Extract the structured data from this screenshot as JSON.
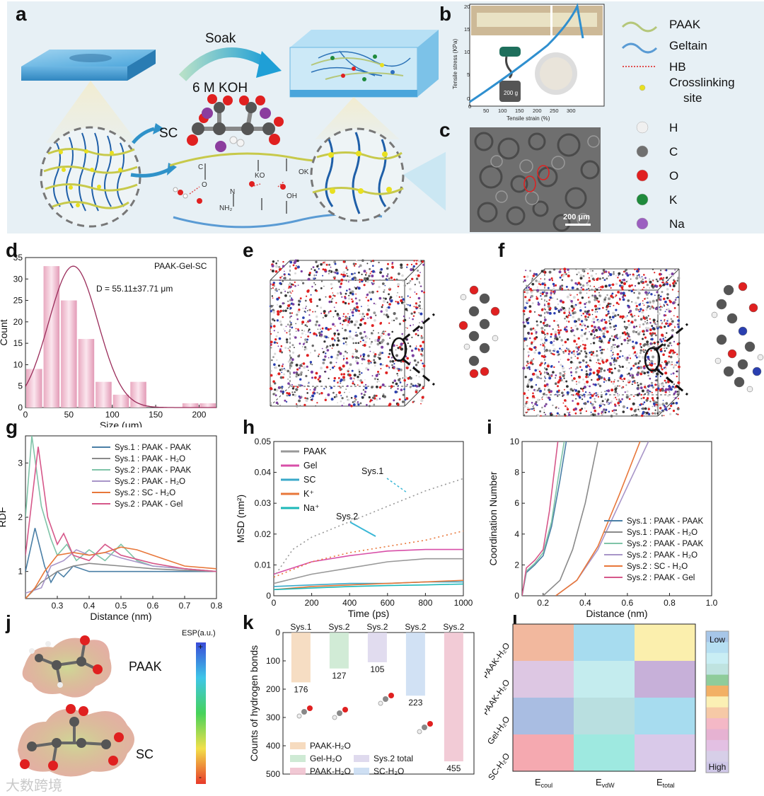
{
  "panel_labels": {
    "a": "a",
    "b": "b",
    "c": "c",
    "d": "d",
    "e": "e",
    "f": "f",
    "g": "g",
    "h": "h",
    "i": "i",
    "j": "j",
    "k": "k",
    "l": "l"
  },
  "panel_a": {
    "soak": "Soak",
    "koh": "6 M KOH",
    "sc": "SC",
    "mol_labels": {
      "ko1": "KO",
      "ko2": "OK",
      "nh2": "NH₂",
      "n1": "H",
      "n2": "N",
      "oh": "OH",
      "o1": "O",
      "c1": "C"
    }
  },
  "legend_a": [
    {
      "label": "PAAK",
      "color": "#b5c77a",
      "kind": "line"
    },
    {
      "label": "Geltain",
      "color": "#5a9bd4",
      "kind": "line"
    },
    {
      "label": "HB",
      "color": "#e05050",
      "kind": "dots"
    },
    {
      "label": "Crosslinking site",
      "color": "#e8e020",
      "kind": "atom"
    },
    {
      "label": "H",
      "color": "#f0f0f0",
      "kind": "atom"
    },
    {
      "label": "C",
      "color": "#707070",
      "kind": "atom"
    },
    {
      "label": "O",
      "color": "#e02020",
      "kind": "atom"
    },
    {
      "label": "K",
      "color": "#1f8a3c",
      "kind": "atom"
    },
    {
      "label": "Na",
      "color": "#9b5fc0",
      "kind": "atom"
    }
  ],
  "panel_b": {
    "ylabel": "Tensile stress (KPa)",
    "xlabel": "Tensile strain (%)",
    "weight": "200 g"
  },
  "panel_c": {
    "scale": "200 μm"
  },
  "panel_e_f": {},
  "chart_data": [
    {
      "id": "d",
      "type": "bar",
      "title": "PAAK-Gel-SC",
      "annotation": "D = 55.11±37.71 μm",
      "xlabel": "Size (μm)",
      "ylabel": "Count",
      "xlim": [
        0,
        220
      ],
      "ylim": [
        0,
        35
      ],
      "xticks": [
        0,
        50,
        100,
        150,
        200
      ],
      "yticks": [
        0,
        5,
        10,
        15,
        20,
        25,
        30,
        35
      ],
      "bins": [
        [
          0,
          20,
          9
        ],
        [
          20,
          40,
          33
        ],
        [
          40,
          60,
          25
        ],
        [
          60,
          80,
          16
        ],
        [
          80,
          100,
          6
        ],
        [
          100,
          120,
          3
        ],
        [
          120,
          140,
          6
        ],
        [
          140,
          160,
          0
        ],
        [
          160,
          180,
          0
        ],
        [
          180,
          200,
          1
        ],
        [
          200,
          220,
          1
        ]
      ],
      "fit_mean": 55.11,
      "fit_peak": 33,
      "fit_sd": 37.71
    },
    {
      "id": "g",
      "type": "line",
      "xlabel": "Distance (nm)",
      "ylabel": "RDF",
      "xlim": [
        0.2,
        0.8
      ],
      "ylim": [
        0.5,
        3.5
      ],
      "xticks": [
        0.3,
        0.4,
        0.5,
        0.6,
        0.7,
        0.8
      ],
      "yticks": [
        1,
        2,
        3
      ],
      "series": [
        {
          "name": "Sys.1 : PAAK - PAAK",
          "color": "#4a7fa6",
          "points": [
            [
              0.2,
              1.0
            ],
            [
              0.23,
              1.8
            ],
            [
              0.26,
              1.1
            ],
            [
              0.28,
              0.8
            ],
            [
              0.3,
              1.0
            ],
            [
              0.32,
              0.9
            ],
            [
              0.35,
              1.1
            ],
            [
              0.4,
              1.0
            ],
            [
              0.5,
              1.0
            ],
            [
              0.6,
              1.0
            ],
            [
              0.8,
              1.0
            ]
          ]
        },
        {
          "name": "Sys.1 : PAAK - H₂O",
          "color": "#8a8a8a",
          "points": [
            [
              0.2,
              0.5
            ],
            [
              0.25,
              0.8
            ],
            [
              0.3,
              1.0
            ],
            [
              0.35,
              1.1
            ],
            [
              0.4,
              1.15
            ],
            [
              0.5,
              1.1
            ],
            [
              0.6,
              1.05
            ],
            [
              0.7,
              1.02
            ],
            [
              0.8,
              1.0
            ]
          ]
        },
        {
          "name": "Sys.2 : PAAK - PAAK",
          "color": "#7fc4a8",
          "points": [
            [
              0.2,
              2.0
            ],
            [
              0.22,
              3.5
            ],
            [
              0.25,
              2.2
            ],
            [
              0.28,
              1.6
            ],
            [
              0.3,
              1.3
            ],
            [
              0.33,
              1.5
            ],
            [
              0.36,
              1.2
            ],
            [
              0.4,
              1.4
            ],
            [
              0.45,
              1.2
            ],
            [
              0.5,
              1.5
            ],
            [
              0.55,
              1.2
            ],
            [
              0.6,
              1.1
            ],
            [
              0.7,
              1.05
            ],
            [
              0.8,
              1.0
            ]
          ]
        },
        {
          "name": "Sys.2 : PAAK - H₂O",
          "color": "#a895c8",
          "points": [
            [
              0.2,
              0.6
            ],
            [
              0.25,
              0.7
            ],
            [
              0.28,
              1.1
            ],
            [
              0.32,
              1.2
            ],
            [
              0.36,
              1.4
            ],
            [
              0.4,
              1.3
            ],
            [
              0.45,
              1.35
            ],
            [
              0.5,
              1.25
            ],
            [
              0.6,
              1.1
            ],
            [
              0.8,
              1.0
            ]
          ]
        },
        {
          "name": "Sys.2 : SC - H₂O",
          "color": "#e8773a",
          "points": [
            [
              0.2,
              0.5
            ],
            [
              0.23,
              0.7
            ],
            [
              0.26,
              1.0
            ],
            [
              0.3,
              1.3
            ],
            [
              0.35,
              1.35
            ],
            [
              0.4,
              1.3
            ],
            [
              0.45,
              1.35
            ],
            [
              0.5,
              1.45
            ],
            [
              0.55,
              1.4
            ],
            [
              0.6,
              1.3
            ],
            [
              0.7,
              1.1
            ],
            [
              0.8,
              1.05
            ]
          ]
        },
        {
          "name": "Sys.2 : PAAK - Gel",
          "color": "#d6588a",
          "points": [
            [
              0.2,
              1.3
            ],
            [
              0.24,
              3.3
            ],
            [
              0.27,
              2.0
            ],
            [
              0.3,
              1.5
            ],
            [
              0.32,
              1.7
            ],
            [
              0.35,
              1.3
            ],
            [
              0.4,
              1.2
            ],
            [
              0.45,
              1.5
            ],
            [
              0.5,
              1.3
            ],
            [
              0.6,
              1.15
            ],
            [
              0.7,
              1.05
            ],
            [
              0.8,
              1.0
            ]
          ]
        }
      ]
    },
    {
      "id": "h",
      "type": "scatter",
      "xlabel": "Time (ps)",
      "ylabel": "MSD (nm²)",
      "xlim": [
        0,
        1000
      ],
      "ylim": [
        0,
        0.05
      ],
      "xticks": [
        0,
        200,
        400,
        600,
        800,
        1000
      ],
      "yticks": [
        0,
        0.01,
        0.02,
        0.03,
        0.04,
        0.05
      ],
      "annotations": [
        "Sys.1",
        "Sys.2"
      ],
      "series": [
        {
          "name": "PAAK",
          "color": "#999999",
          "points": [
            [
              0,
              0.004
            ],
            [
              200,
              0.007
            ],
            [
              400,
              0.009
            ],
            [
              600,
              0.011
            ],
            [
              800,
              0.012
            ],
            [
              1000,
              0.012
            ]
          ]
        },
        {
          "name": "Gel",
          "color": "#d84fa8",
          "points": [
            [
              0,
              0.007
            ],
            [
              200,
              0.011
            ],
            [
              400,
              0.013
            ],
            [
              600,
              0.0145
            ],
            [
              800,
              0.015
            ],
            [
              1000,
              0.015
            ]
          ]
        },
        {
          "name": "SC",
          "color": "#3aa9c9",
          "points": [
            [
              0,
              0.003
            ],
            [
              200,
              0.0035
            ],
            [
              400,
              0.004
            ],
            [
              600,
              0.004
            ],
            [
              800,
              0.0045
            ],
            [
              1000,
              0.0045
            ]
          ]
        },
        {
          "name": "K⁺",
          "color": "#e8773a",
          "points": [
            [
              0,
              0.002
            ],
            [
              200,
              0.003
            ],
            [
              400,
              0.0035
            ],
            [
              600,
              0.004
            ],
            [
              800,
              0.0045
            ],
            [
              1000,
              0.005
            ]
          ]
        },
        {
          "name": "Na⁺",
          "color": "#1cb8b8",
          "points": [
            [
              0,
              0.002
            ],
            [
              200,
              0.0025
            ],
            [
              400,
              0.003
            ],
            [
              600,
              0.0033
            ],
            [
              800,
              0.0035
            ],
            [
              1000,
              0.0038
            ]
          ]
        },
        {
          "name": "Sys.1 PAAK",
          "color": "#999999",
          "dotted": true,
          "points": [
            [
              0,
              0.006
            ],
            [
              100,
              0.015
            ],
            [
              200,
              0.019
            ],
            [
              400,
              0.024
            ],
            [
              600,
              0.029
            ],
            [
              800,
              0.034
            ],
            [
              1000,
              0.038
            ]
          ]
        },
        {
          "name": "Sys.1 K⁺",
          "color": "#e8773a",
          "dotted": true,
          "points": [
            [
              0,
              0.006
            ],
            [
              200,
              0.011
            ],
            [
              400,
              0.014
            ],
            [
              600,
              0.016
            ],
            [
              800,
              0.018
            ],
            [
              1000,
              0.021
            ]
          ]
        }
      ]
    },
    {
      "id": "i",
      "type": "line",
      "xlabel": "Distance (nm)",
      "ylabel": "Coordination Number",
      "xlim": [
        0.1,
        1.0
      ],
      "ylim": [
        0,
        10
      ],
      "xticks": [
        0.2,
        0.4,
        0.6,
        0.8,
        1.0
      ],
      "yticks": [
        0,
        2,
        4,
        6,
        8,
        10
      ],
      "series": [
        {
          "name": "Sys.1 : PAAK - PAAK",
          "color": "#4a7fa6",
          "points": [
            [
              0.1,
              0
            ],
            [
              0.12,
              1.5
            ],
            [
              0.16,
              2.0
            ],
            [
              0.2,
              2.6
            ],
            [
              0.24,
              4.5
            ],
            [
              0.28,
              7.5
            ],
            [
              0.31,
              10
            ]
          ]
        },
        {
          "name": "Sys.1 : PAAK - H₂O",
          "color": "#8a8a8a",
          "points": [
            [
              0.2,
              0
            ],
            [
              0.28,
              1
            ],
            [
              0.34,
              3
            ],
            [
              0.4,
              6
            ],
            [
              0.46,
              10
            ]
          ]
        },
        {
          "name": "Sys.2 : PAAK - PAAK",
          "color": "#7fc4a8",
          "points": [
            [
              0.1,
              0
            ],
            [
              0.12,
              1.6
            ],
            [
              0.16,
              2.1
            ],
            [
              0.2,
              2.8
            ],
            [
              0.24,
              4.8
            ],
            [
              0.27,
              7.5
            ],
            [
              0.3,
              10
            ]
          ]
        },
        {
          "name": "Sys.2 : PAAK - H₂O",
          "color": "#a895c8",
          "points": [
            [
              0.26,
              0
            ],
            [
              0.36,
              1
            ],
            [
              0.46,
              3
            ],
            [
              0.58,
              6.5
            ],
            [
              0.7,
              10
            ]
          ]
        },
        {
          "name": "Sys.2 : SC - H₂O",
          "color": "#e8773a",
          "points": [
            [
              0.26,
              0
            ],
            [
              0.36,
              1
            ],
            [
              0.46,
              3.2
            ],
            [
              0.56,
              6.5
            ],
            [
              0.66,
              10
            ]
          ]
        },
        {
          "name": "Sys.2 : PAAK - Gel",
          "color": "#d6588a",
          "points": [
            [
              0.1,
              0
            ],
            [
              0.12,
              1.8
            ],
            [
              0.16,
              2.3
            ],
            [
              0.2,
              3.0
            ],
            [
              0.23,
              5.5
            ],
            [
              0.27,
              10
            ]
          ]
        }
      ]
    },
    {
      "id": "k",
      "type": "bar",
      "xlabel": "",
      "ylabel": "Counts of hydrogen bonds",
      "ylim": [
        0,
        500
      ],
      "yticks": [
        0,
        100,
        200,
        300,
        400,
        500
      ],
      "inverted": true,
      "categories": [
        "Sys.1",
        "Sys.2",
        "Sys.2",
        "Sys.2",
        "Sys.2"
      ],
      "values": [
        176,
        127,
        105,
        223,
        455
      ],
      "colors": [
        "#f5d7b8",
        "#c9e8cf",
        "#dcd6ec",
        "#c9dcf2",
        "#f0c2cf"
      ],
      "legend": [
        "PAAK-H₂O",
        "Gel-H₂O",
        "PAAK-H₂O",
        "Sys.2 total",
        "SC-H₂O"
      ]
    },
    {
      "id": "l",
      "type": "heatmap",
      "rows": [
        "PAAK-H₂O",
        "PAAK-H₂O",
        "Gel-H₂O",
        "SC-H₂O"
      ],
      "cols": [
        "E_coul",
        "E_vdW",
        "E_total"
      ],
      "colors": [
        [
          "#f2b89e",
          "#a7dcef",
          "#fbefad"
        ],
        [
          "#ddc7e3",
          "#c4ecee",
          "#c7b0d9"
        ],
        [
          "#a9bde2",
          "#b9dfe0",
          "#a7dcef"
        ],
        [
          "#f5a9b0",
          "#9ee9e0",
          "#d9c9e9"
        ]
      ],
      "scale_low": "Low",
      "scale_high": "High",
      "scale_colors": [
        "#a7c6e8",
        "#b6dff2",
        "#c9eef4",
        "#bfe3e0",
        "#8fcc9a",
        "#f2b065",
        "#fbf0b4",
        "#f6c9a6",
        "#f4b8c6",
        "#e6b2d2",
        "#e3c0e3",
        "#d7cfe8",
        "#cfc7e8"
      ]
    }
  ],
  "panel_j": {
    "paak": "PAAK",
    "sc": "SC",
    "esp": "ESP(a.u.)",
    "plus": "+",
    "minus": "-"
  },
  "axes_text": {
    "l_ecoul": "E",
    "l_ecoul_sub": "coul",
    "l_evdw": "E",
    "l_evdw_sub": "vdW",
    "l_etotal": "E",
    "l_etotal_sub": "total"
  },
  "watermark": "大数跨境"
}
